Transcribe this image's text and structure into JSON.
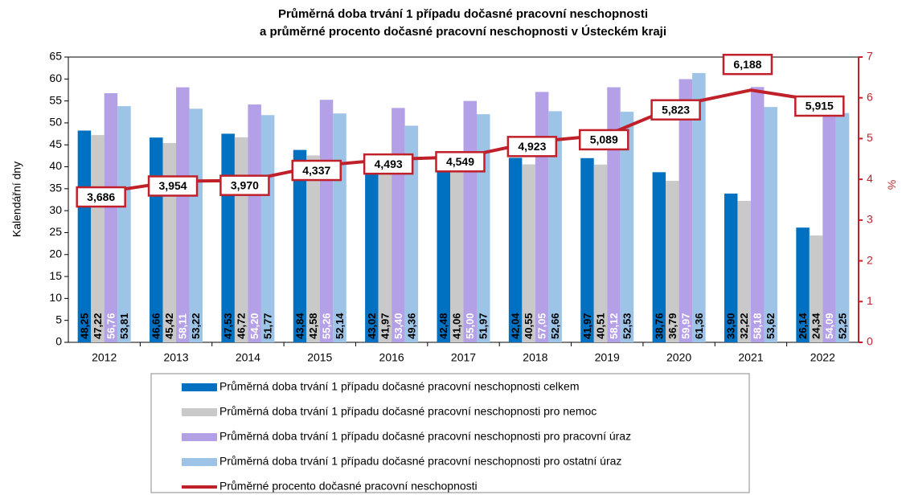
{
  "chart_data": {
    "type": "bar",
    "title": [
      "Průměrná doba trvání 1 případu dočasné pracovní neschopnosti",
      "a průměrné procento dočasné pracovní neschopnosti v Ústeckém kraji"
    ],
    "y_label": "Kalendářní dny",
    "y2_label": "%",
    "categories": [
      "2012",
      "2013",
      "2014",
      "2015",
      "2016",
      "2017",
      "2018",
      "2019",
      "2020",
      "2021",
      "2022"
    ],
    "ylim": [
      0,
      65
    ],
    "yticks": [
      0,
      5,
      10,
      15,
      20,
      25,
      30,
      35,
      40,
      45,
      50,
      55,
      60,
      65
    ],
    "y2lim": [
      0,
      7
    ],
    "y2ticks": [
      0,
      1,
      2,
      3,
      4,
      5,
      6,
      7
    ],
    "grid": false,
    "series": [
      {
        "name": "Průměrná doba trvání 1 případu dočasné pracovní neschopnosti celkem",
        "color": "#0070c0",
        "values": [
          48.25,
          46.66,
          47.53,
          43.84,
          43.02,
          42.48,
          42.04,
          41.97,
          38.76,
          33.9,
          26.14
        ],
        "value_labels": [
          "48,25",
          "46,66",
          "47,53",
          "43,84",
          "43,02",
          "42,48",
          "42,04",
          "41,97",
          "38,76",
          "33,90",
          "26,14"
        ]
      },
      {
        "name": "Průměrná doba trvání 1 případu dočasné pracovní neschopnosti pro nemoc",
        "color": "#c9c9c9",
        "values": [
          47.22,
          45.42,
          46.72,
          42.58,
          41.97,
          41.06,
          40.55,
          40.51,
          36.79,
          32.22,
          24.34
        ],
        "value_labels": [
          "47,22",
          "45,42",
          "46,72",
          "42,58",
          "41,97",
          "41,06",
          "40,55",
          "40,51",
          "36,79",
          "32,22",
          "24,34"
        ]
      },
      {
        "name": "Průměrná doba trvání 1 případu dočasné pracovní neschopnosti pro pracovní úraz",
        "color": "#b4a0e6",
        "values": [
          56.76,
          58.11,
          54.2,
          55.26,
          53.4,
          55.0,
          57.05,
          58.12,
          59.97,
          58.18,
          54.09
        ],
        "value_labels": [
          "56,76",
          "58,11",
          "54,20",
          "55,26",
          "53,40",
          "55,00",
          "57,05",
          "58,12",
          "59,97",
          "58,18",
          "54,09"
        ]
      },
      {
        "name": "Průměrná doba trvání 1 případu dočasné pracovní neschopnosti pro ostatní úraz",
        "color": "#9dc3e6",
        "values": [
          53.81,
          53.22,
          51.77,
          52.14,
          49.36,
          51.97,
          52.66,
          52.53,
          61.36,
          53.62,
          52.25
        ],
        "value_labels": [
          "53,81",
          "53,22",
          "51,77",
          "52,14",
          "49,36",
          "51,97",
          "52,66",
          "52,53",
          "61,36",
          "53,62",
          "52,25"
        ]
      },
      {
        "name": "Průměrné procento dočasné pracovní neschopnosti",
        "color": "#c0202a",
        "type": "line",
        "axis": "y2",
        "values": [
          3.686,
          3.954,
          3.97,
          4.337,
          4.493,
          4.549,
          4.923,
          5.089,
          5.823,
          6.188,
          5.915
        ],
        "value_labels": [
          "3,686",
          "3,954",
          "3,970",
          "4,337",
          "4,493",
          "4,549",
          "4,923",
          "5,089",
          "5,823",
          "6,188",
          "5,915"
        ]
      }
    ]
  }
}
